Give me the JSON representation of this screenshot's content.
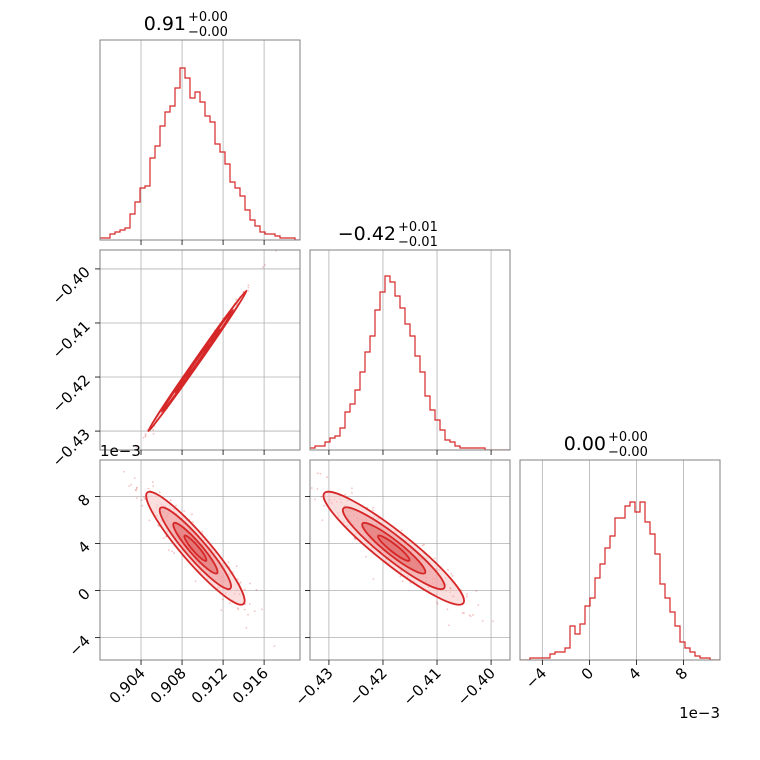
{
  "chart_data": {
    "type": "corner",
    "color": "#d62728",
    "fill_colors": [
      "#f7c4c4",
      "#ee9a9a",
      "#e26a6a"
    ],
    "grid": true,
    "parameters": [
      {
        "id": "p0",
        "title": {
          "main": "0.91",
          "sup": "+0.00",
          "sub": "−0.00"
        },
        "range": [
          0.9,
          0.9195
        ],
        "ticks": [
          0.904,
          0.908,
          0.912,
          0.916
        ],
        "tick_labels": [
          "0.904",
          "0.908",
          "0.912",
          "0.916"
        ],
        "offset_label": ""
      },
      {
        "id": "p1",
        "title": {
          "main": "−0.42",
          "sup": "+0.01",
          "sub": "−0.01"
        },
        "range": [
          -0.4335,
          -0.3965
        ],
        "ticks": [
          -0.43,
          -0.42,
          -0.41,
          -0.4
        ],
        "tick_labels": [
          "−0.43",
          "−0.42",
          "−0.41",
          "−0.40"
        ],
        "offset_label": ""
      },
      {
        "id": "p2",
        "title": {
          "main": "0.00",
          "sup": "+0.00",
          "sub": "−0.00"
        },
        "range": [
          -0.0059,
          0.0111
        ],
        "ticks": [
          -0.004,
          0.0,
          0.004,
          0.008
        ],
        "tick_labels": [
          "−4",
          "0",
          "4",
          "8"
        ],
        "offset_label": "1e−3"
      }
    ],
    "histograms": [
      {
        "param": 0,
        "bin_range": [
          0.9,
          0.9195
        ],
        "counts": [
          0.01,
          0.01,
          0.03,
          0.04,
          0.05,
          0.06,
          0.13,
          0.19,
          0.26,
          0.27,
          0.41,
          0.47,
          0.57,
          0.64,
          0.67,
          0.76,
          0.86,
          0.81,
          0.71,
          0.74,
          0.69,
          0.62,
          0.59,
          0.48,
          0.44,
          0.38,
          0.29,
          0.26,
          0.22,
          0.15,
          0.1,
          0.07,
          0.04,
          0.03,
          0.03,
          0.02,
          0.01,
          0.01,
          0.01,
          0.0
        ]
      },
      {
        "param": 1,
        "bin_range": [
          -0.4335,
          -0.3965
        ],
        "counts": [
          0.01,
          0.02,
          0.02,
          0.04,
          0.06,
          0.07,
          0.11,
          0.19,
          0.23,
          0.3,
          0.39,
          0.49,
          0.57,
          0.7,
          0.79,
          0.87,
          0.84,
          0.77,
          0.71,
          0.63,
          0.57,
          0.47,
          0.39,
          0.27,
          0.2,
          0.15,
          0.1,
          0.05,
          0.04,
          0.02,
          0.01,
          0.01,
          0.01,
          0.01,
          0.01,
          0.0,
          0.0,
          0.0,
          0.0,
          0.0
        ]
      },
      {
        "param": 2,
        "bin_range": [
          -0.0059,
          0.0111
        ],
        "counts": [
          0.0,
          0.0,
          0.01,
          0.01,
          0.01,
          0.01,
          0.03,
          0.04,
          0.04,
          0.06,
          0.17,
          0.13,
          0.18,
          0.27,
          0.31,
          0.41,
          0.48,
          0.56,
          0.62,
          0.71,
          0.71,
          0.77,
          0.79,
          0.74,
          0.79,
          0.69,
          0.63,
          0.53,
          0.38,
          0.31,
          0.24,
          0.17,
          0.09,
          0.06,
          0.04,
          0.02,
          0.01,
          0.01,
          0.0,
          0.0
        ]
      }
    ],
    "pairs": [
      {
        "x_param": 0,
        "y_param": 1,
        "mean": [
          0.9095,
          -0.417
        ],
        "sd": [
          0.0024,
          0.0065
        ],
        "corr": 0.998
      },
      {
        "x_param": 0,
        "y_param": 2,
        "mean": [
          0.9093,
          0.0036
        ],
        "sd": [
          0.0024,
          0.0024
        ],
        "corr": -0.93
      },
      {
        "x_param": 1,
        "y_param": 2,
        "mean": [
          -0.418,
          0.0036
        ],
        "sd": [
          0.0065,
          0.0024
        ],
        "corr": -0.93
      }
    ]
  }
}
